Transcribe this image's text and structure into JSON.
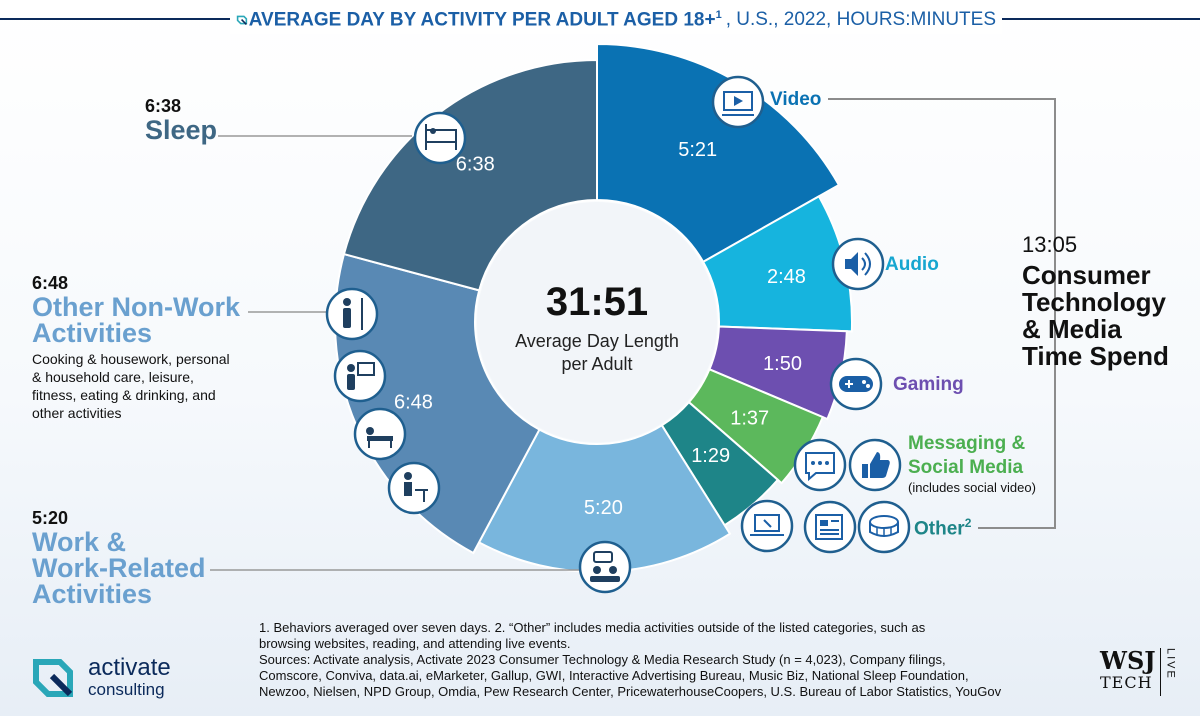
{
  "header": {
    "title": "AVERAGE DAY BY ACTIVITY PER ADULT AGED 18+",
    "title_sup": "1",
    "subtitle": ", U.S., 2022, HOURS:MINUTES"
  },
  "chart_data": {
    "type": "pie",
    "variant": "donut",
    "title": "AVERAGE DAY BY ACTIVITY PER ADULT AGED 18+, U.S., 2022, HOURS:MINUTES",
    "center_value": "31:51",
    "center_label_line1": "Average Day Length",
    "center_label_line2": "per Adult",
    "total_minutes": 1911,
    "slices": [
      {
        "label": "Video",
        "value_text": "5:21",
        "minutes": 321,
        "color": "#0a72b3"
      },
      {
        "label": "Audio",
        "value_text": "2:48",
        "minutes": 168,
        "color": "#16b4de"
      },
      {
        "label": "Gaming",
        "value_text": "1:50",
        "minutes": 110,
        "color": "#6d4fb0"
      },
      {
        "label": "Messaging & Social Media",
        "value_text": "1:37",
        "minutes": 97,
        "color": "#5cb85c"
      },
      {
        "label": "Other",
        "value_text": "1:29",
        "minutes": 89,
        "color": "#1e8588"
      },
      {
        "label": "Work & Work-Related Activities",
        "value_text": "5:20",
        "minutes": 320,
        "color": "#79b6dd"
      },
      {
        "label": "Other Non-Work Activities",
        "value_text": "6:48",
        "minutes": 408,
        "color": "#5989b4"
      },
      {
        "label": "Sleep",
        "value_text": "6:38",
        "minutes": 398,
        "color": "#3e6784"
      }
    ]
  },
  "left_labels": {
    "sleep": {
      "time": "6:38",
      "name": "Sleep"
    },
    "nonwork": {
      "time": "6:48",
      "name_line1": "Other Non-Work",
      "name_line2": "Activities",
      "desc1": "Cooking & housework, personal",
      "desc2": "& household care, leisure,",
      "desc3": "fitness, eating & drinking, and",
      "desc4": "other activities"
    },
    "work": {
      "time": "5:20",
      "name_line1": "Work &",
      "name_line2": "Work-Related",
      "name_line3": "Activities"
    }
  },
  "right_labels": {
    "video": "Video",
    "audio": "Audio",
    "gaming": "Gaming",
    "messaging_line1": "Messaging &",
    "messaging_line2": "Social Media",
    "messaging_note": "(includes social video)",
    "other": "Other",
    "other_sup": "2"
  },
  "bracket": {
    "time": "13:05",
    "line1": "Consumer",
    "line2": "Technology",
    "line3": "& Media",
    "line4": "Time Spend"
  },
  "footnotes": {
    "line1": "1. Behaviors averaged over seven days.  2. “Other” includes media activities outside of the listed categories, such as",
    "line2": "browsing websites, reading, and attending live events.",
    "line3": "Sources: Activate analysis, Activate 2023 Consumer Technology & Media Research Study (n = 4,023), Company filings,",
    "line4": "Comscore, Conviva, data.ai, eMarketer, Gallup, GWI, Interactive Advertising Bureau, Music Biz, National Sleep Foundation,",
    "line5": "Newzoo, Nielsen, NPD Group, Omdia, Pew Research Center, PricewaterhouseCoopers, U.S. Bureau of Labor Statistics, YouGov"
  },
  "logo": {
    "word1": "activate",
    "word2": "consulting"
  },
  "wsj": {
    "line1": "WSJ",
    "line2": "TECH",
    "live": "LIVE"
  },
  "colors": {
    "brand_blue": "#1b5fa6",
    "navy": "#0b2a5b",
    "label_blue": "#6aa0cf",
    "bracket_gray": "#8c8c8c"
  }
}
